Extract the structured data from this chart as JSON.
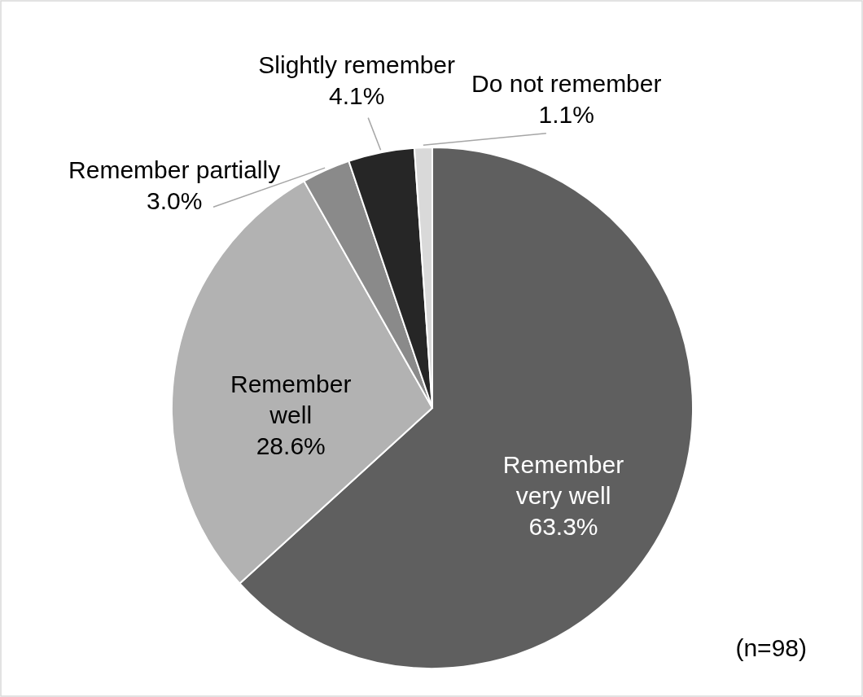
{
  "chart_data": {
    "type": "pie",
    "categories": [
      "Remember very well",
      "Remember well",
      "Remember partially",
      "Slightly remember",
      "Do not remember"
    ],
    "values": [
      63.3,
      28.6,
      3.0,
      4.1,
      1.1
    ],
    "value_labels": [
      "63.3%",
      "28.6%",
      "3.0%",
      "4.1%",
      "1.1%"
    ],
    "colors": [
      "#5f5f5f",
      "#b2b2b2",
      "#8a8a8a",
      "#262626",
      "#d9d9d9"
    ],
    "annotations": [
      "(n=98)"
    ]
  }
}
